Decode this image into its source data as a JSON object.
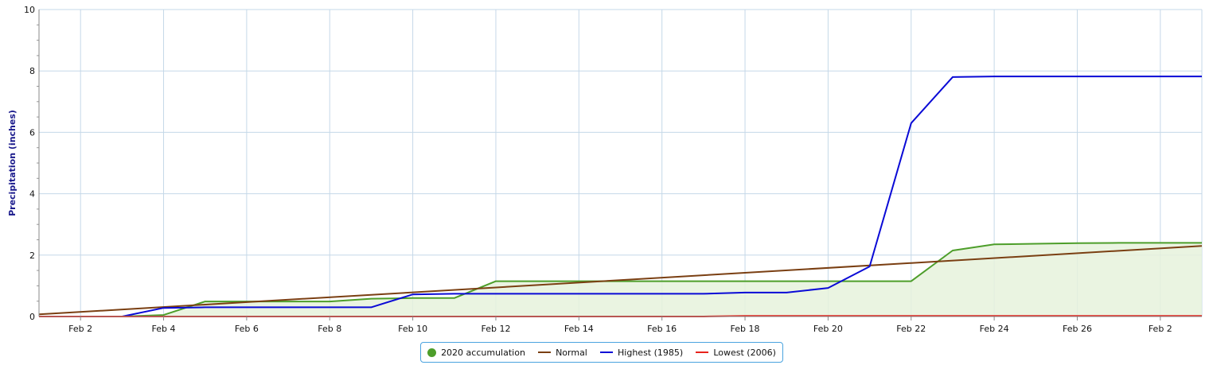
{
  "chart_data": {
    "type": "area",
    "ylabel": "Precipitation (inches)",
    "xlabel": "",
    "ylim": [
      0,
      10
    ],
    "xlim": [
      1,
      29
    ],
    "yticks": [
      0,
      2,
      4,
      6,
      8,
      10
    ],
    "xticks": [
      2,
      4,
      6,
      8,
      10,
      12,
      14,
      16,
      18,
      20,
      22,
      24,
      26,
      28
    ],
    "xtick_labels": [
      "Feb 2",
      "Feb 4",
      "Feb 6",
      "Feb 8",
      "Feb 10",
      "Feb 12",
      "Feb 14",
      "Feb 16",
      "Feb 18",
      "Feb 20",
      "Feb 22",
      "Feb 24",
      "Feb 26",
      "Feb 2"
    ],
    "grid": true,
    "legend_position": "bottom-center",
    "series": [
      {
        "name": "2020 accumulation",
        "style": "area",
        "color": "#4d9e2a",
        "fill": "#e6f2dc",
        "x": [
          1,
          2,
          3,
          4,
          5,
          6,
          7,
          8,
          9,
          10,
          11,
          12,
          13,
          14,
          15,
          16,
          17,
          18,
          19,
          20,
          21,
          22,
          23,
          24,
          25,
          26,
          27,
          28,
          29
        ],
        "values": [
          0,
          0,
          0,
          0.05,
          0.49,
          0.49,
          0.49,
          0.49,
          0.58,
          0.6,
          0.6,
          1.15,
          1.15,
          1.15,
          1.15,
          1.15,
          1.15,
          1.15,
          1.15,
          1.15,
          1.15,
          1.15,
          2.15,
          2.35,
          2.37,
          2.39,
          2.4,
          2.4,
          2.4
        ]
      },
      {
        "name": "Normal",
        "style": "line",
        "color": "#7a3f12",
        "x": [
          1,
          29
        ],
        "values": [
          0.07,
          2.3
        ]
      },
      {
        "name": "Highest (1985)",
        "style": "line",
        "color": "#0a0ad6",
        "x": [
          1,
          2,
          3,
          4,
          5,
          6,
          7,
          8,
          9,
          10,
          11,
          12,
          13,
          14,
          15,
          16,
          17,
          18,
          19,
          20,
          21,
          22,
          23,
          24,
          25,
          26,
          27,
          28,
          29
        ],
        "values": [
          0,
          0,
          0,
          0.28,
          0.3,
          0.3,
          0.3,
          0.3,
          0.3,
          0.72,
          0.74,
          0.74,
          0.74,
          0.74,
          0.74,
          0.74,
          0.74,
          0.78,
          0.78,
          0.93,
          1.63,
          6.3,
          7.8,
          7.82,
          7.82,
          7.82,
          7.82,
          7.82,
          7.82
        ]
      },
      {
        "name": "Lowest (2006)",
        "style": "line",
        "color": "#e8231c",
        "x": [
          1,
          17,
          18,
          29
        ],
        "values": [
          0,
          0,
          0.02,
          0.02
        ]
      }
    ]
  }
}
